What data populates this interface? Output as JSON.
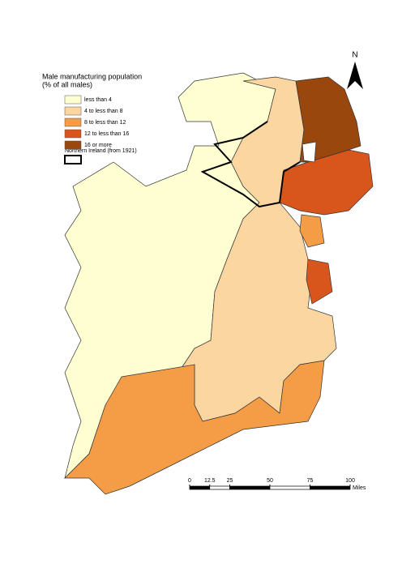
{
  "legend": {
    "title": "Male manufacturing population",
    "subtitle": "(% of all males)",
    "items": [
      {
        "label": "less than 4",
        "color": "#ffffd2"
      },
      {
        "label": "4 to less than 8",
        "color": "#fbd6a0"
      },
      {
        "label": "8 to less than 12",
        "color": "#f59d46"
      },
      {
        "label": "12 to less than 16",
        "color": "#d8561c"
      },
      {
        "label": "16 or more",
        "color": "#9a470d"
      }
    ],
    "boundary_label": "Northern Ireland (from 1921)"
  },
  "north_arrow": "N",
  "scale_bar": {
    "ticks": [
      0,
      12.5,
      25,
      50,
      75,
      100
    ],
    "unit": "Miles"
  }
}
